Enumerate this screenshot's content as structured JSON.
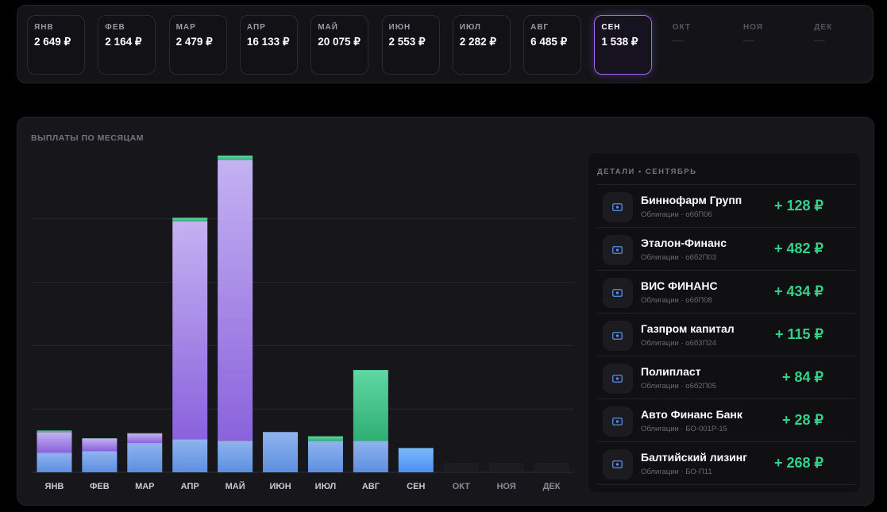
{
  "months_strip": [
    {
      "label": "ЯНВ",
      "amount": "2 649 ₽",
      "state": "normal"
    },
    {
      "label": "ФЕВ",
      "amount": "2 164 ₽",
      "state": "normal"
    },
    {
      "label": "МАР",
      "amount": "2 479 ₽",
      "state": "normal"
    },
    {
      "label": "АПР",
      "amount": "16 133 ₽",
      "state": "normal"
    },
    {
      "label": "МАЙ",
      "amount": "20 075 ₽",
      "state": "normal"
    },
    {
      "label": "ИЮН",
      "amount": "2 553 ₽",
      "state": "normal"
    },
    {
      "label": "ИЮЛ",
      "amount": "2 282 ₽",
      "state": "normal"
    },
    {
      "label": "АВГ",
      "amount": "6 485 ₽",
      "state": "normal"
    },
    {
      "label": "СЕН",
      "amount": "1 538 ₽",
      "state": "selected"
    },
    {
      "label": "ОКТ",
      "amount": "—",
      "state": "empty"
    },
    {
      "label": "НОЯ",
      "amount": "—",
      "state": "empty"
    },
    {
      "label": "ДЕК",
      "amount": "—",
      "state": "empty"
    }
  ],
  "panel": {
    "title": "ВЫПЛАТЫ ПО МЕСЯЦАМ"
  },
  "chart_data": {
    "type": "bar",
    "stacked": true,
    "categories": [
      "ЯНВ",
      "ФЕВ",
      "МАР",
      "АПР",
      "МАЙ",
      "ИЮН",
      "ИЮЛ",
      "АВГ",
      "СЕН",
      "ОКТ",
      "НОЯ",
      "ДЕК"
    ],
    "totals": [
      2649,
      2164,
      2479,
      16133,
      20075,
      2553,
      2282,
      6485,
      1538,
      0,
      0,
      0
    ],
    "series": [
      {
        "values": [
          1250,
          1350,
          1860,
          2100,
          2000,
          2553,
          2000,
          2000,
          1538,
          0,
          0,
          0
        ],
        "color": "#6f9fe6"
      },
      {
        "values": [
          1300,
          800,
          600,
          13800,
          17800,
          0,
          0,
          0,
          0,
          0,
          0,
          0
        ],
        "color": "#9a78e6"
      },
      {
        "values": [
          99,
          14,
          19,
          233,
          275,
          0,
          282,
          4485,
          0,
          0,
          0,
          0
        ],
        "color": "#3ec38a"
      }
    ],
    "selected": "СЕН",
    "grid": true,
    "ylim": [
      0,
      20075
    ]
  },
  "details": {
    "title": "ДЕТАЛИ • СЕНТЯБРЬ",
    "items": [
      {
        "name": "Биннофарм Групп",
        "sub": "Облигации · о6бП06",
        "amount": "+ 128 ₽"
      },
      {
        "name": "Эталон-Финанс",
        "sub": "Облигации · о6б2П03",
        "amount": "+ 482 ₽"
      },
      {
        "name": "ВИС ФИНАНС",
        "sub": "Облигации · о6бП08",
        "amount": "+ 434 ₽"
      },
      {
        "name": "Газпром капитал",
        "sub": "Облигации · о6б3П24",
        "amount": "+ 115 ₽"
      },
      {
        "name": "Полипласт",
        "sub": "Облигации · о6б2П05",
        "amount": "+ 84 ₽"
      },
      {
        "name": "Авто Финанс Банк",
        "sub": "Облигации · БО-001Р-15",
        "amount": "+ 28 ₽"
      },
      {
        "name": "Балтийский лизинг",
        "sub": "Облигации · БО-П11",
        "amount": "+ 268 ₽"
      }
    ],
    "icon": "bond-icon",
    "icon_color": "#5b8ee6",
    "amount_color": "#34d18a"
  }
}
